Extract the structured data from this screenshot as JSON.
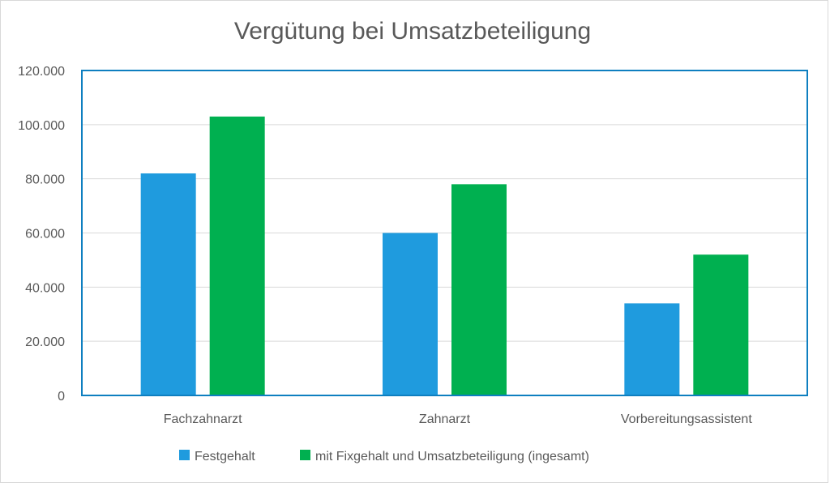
{
  "chart_data": {
    "type": "bar",
    "title": "Vergütung bei Umsatzbeteiligung",
    "xlabel": "",
    "ylabel": "",
    "categories": [
      "Fachzahnarzt",
      "Zahnarzt",
      "Vorbereitungsassistent"
    ],
    "series": [
      {
        "name": "Festgehalt",
        "color": "#1f9bde",
        "values": [
          82000,
          60000,
          34000
        ]
      },
      {
        "name": "mit Fixgehalt und Umsatzbeteiligung (ingesamt)",
        "color": "#00b050",
        "values": [
          103000,
          78000,
          52000
        ]
      }
    ],
    "ylim": [
      0,
      120000
    ],
    "yticks": [
      0,
      20000,
      40000,
      60000,
      80000,
      100000,
      120000
    ],
    "ytick_labels": [
      "0",
      "20.000",
      "40.000",
      "60.000",
      "80.000",
      "100.000",
      "120.000"
    ],
    "grid": true,
    "legend_position": "bottom",
    "plot_border_color": "#0e7fc0",
    "grid_color": "#d9d9d9"
  }
}
